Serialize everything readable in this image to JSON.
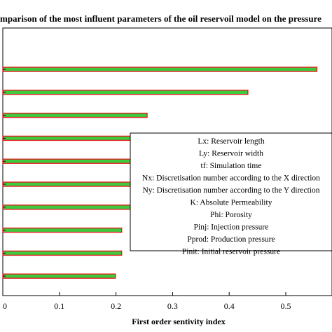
{
  "chart_data": {
    "type": "bar",
    "orientation": "horizontal",
    "title": "mparison of the most influent parameters of the oil reservoil model on the pressure",
    "xlabel": "First order sentivity index",
    "ylabel": "",
    "xlim": [
      0,
      0.6
    ],
    "xticks": [
      "0",
      "0.1",
      "0.2",
      "0.3",
      "0.4",
      "0.5"
    ],
    "xtick_values": [
      0,
      0.1,
      0.2,
      0.3,
      0.4,
      0.5
    ],
    "values": [
      0.555,
      0.433,
      0.255,
      0.253,
      0.238,
      0.237,
      0.232,
      0.21,
      0.21,
      0.199
    ],
    "bar_fill": "#3ec93e",
    "bar_edge": "#e02020",
    "grid": false,
    "legend_position": "right",
    "legend": [
      "Lx: Reservoir length",
      "Ly: Reservoir width",
      "tf: Simulation time",
      "Nx: Discretisation number according to the X direction",
      "Ny: Discretisation number according to the Y direction",
      "K: Absolute Permeability",
      "Phi: Porosity",
      "Pinj: Injection pressure",
      "Pprod: Production pressure",
      "Pinit: Initial reservoir pressure"
    ]
  }
}
